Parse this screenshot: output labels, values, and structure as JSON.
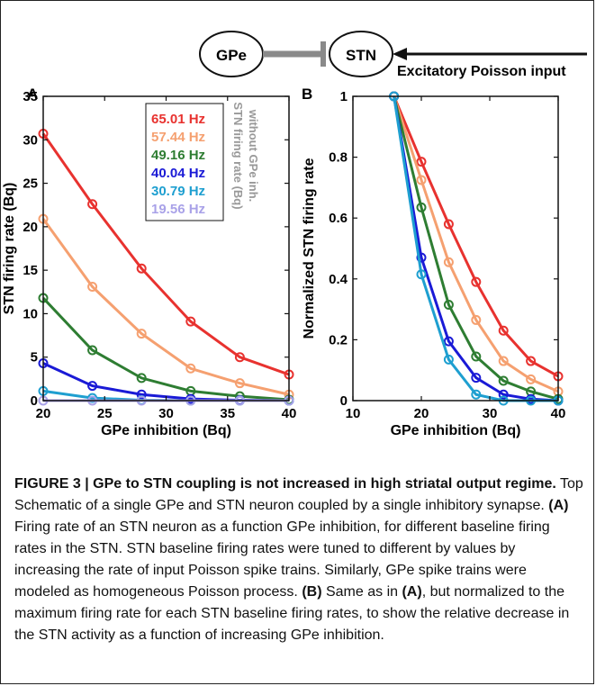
{
  "schematic": {
    "gpe": "GPe",
    "stn": "STN",
    "input_label": "Excitatory Poisson input"
  },
  "panels": {
    "a_letter": "A",
    "b_letter": "B",
    "legend_rotated": [
      "STN firing rate (Bq)",
      "without GPe inh."
    ]
  },
  "chart_data": [
    {
      "type": "line",
      "panel": "A",
      "xlabel": "GPe inhibition (Bq)",
      "ylabel": "STN firing rate (Bq)",
      "xlim": [
        20,
        40
      ],
      "ylim": [
        0,
        35
      ],
      "xticks": [
        "20",
        "25",
        "30",
        "35",
        "40"
      ],
      "yticks": [
        "0",
        "5",
        "10",
        "15",
        "20",
        "25",
        "30",
        "35"
      ],
      "x": [
        20,
        24,
        28,
        32,
        36,
        40
      ],
      "series": [
        {
          "name": "65.01 Hz",
          "color": "#e8322f",
          "values": [
            30.7,
            22.6,
            15.2,
            9.1,
            5.0,
            3.0
          ]
        },
        {
          "name": "57.44 Hz",
          "color": "#f5a070",
          "values": [
            20.9,
            13.1,
            7.7,
            3.7,
            2.0,
            0.7
          ]
        },
        {
          "name": "49.16 Hz",
          "color": "#2e7d32",
          "values": [
            11.8,
            5.8,
            2.6,
            1.1,
            0.5,
            0.1
          ]
        },
        {
          "name": "40.04 Hz",
          "color": "#1a1ad6",
          "values": [
            4.3,
            1.7,
            0.7,
            0.2,
            0.05,
            0.0
          ]
        },
        {
          "name": "30.79 Hz",
          "color": "#1e9fd0",
          "values": [
            1.1,
            0.3,
            0.05,
            0.0,
            0.0,
            0.0
          ]
        },
        {
          "name": "19.56 Hz",
          "color": "#a9a2e8",
          "values": [
            0.0,
            0.0,
            0.0,
            0.0,
            0.0,
            0.0
          ]
        }
      ],
      "legend": "top-right"
    },
    {
      "type": "line",
      "panel": "B",
      "xlabel": "GPe inhibition (Bq)",
      "ylabel": "Normalized STN firing rate",
      "xlim": [
        10,
        40
      ],
      "ylim": [
        0,
        1
      ],
      "xticks": [
        "10",
        "20",
        "30",
        "40"
      ],
      "yticks": [
        "0",
        "0.2",
        "0.4",
        "0.6",
        "0.8",
        "1"
      ],
      "x": [
        16,
        20,
        24,
        28,
        32,
        36,
        40
      ],
      "series": [
        {
          "name": "65.01 Hz",
          "color": "#e8322f",
          "values": [
            1.0,
            0.785,
            0.58,
            0.39,
            0.23,
            0.13,
            0.08
          ]
        },
        {
          "name": "57.44 Hz",
          "color": "#f5a070",
          "values": [
            1.0,
            0.725,
            0.455,
            0.265,
            0.13,
            0.07,
            0.03
          ]
        },
        {
          "name": "49.16 Hz",
          "color": "#2e7d32",
          "values": [
            1.0,
            0.635,
            0.315,
            0.145,
            0.065,
            0.03,
            0.005
          ]
        },
        {
          "name": "40.04 Hz",
          "color": "#1a1ad6",
          "values": [
            1.0,
            0.47,
            0.195,
            0.075,
            0.02,
            0.005,
            0.0
          ]
        },
        {
          "name": "30.79 Hz",
          "color": "#1e9fd0",
          "values": [
            1.0,
            0.415,
            0.135,
            0.02,
            0.0,
            0.0,
            0.0
          ]
        }
      ]
    }
  ],
  "caption": {
    "figure_label": "FIGURE 3 | GPe to STN coupling is not increased in high striatal output regime.",
    "seg1": " Top Schematic of a single GPe and STN neuron coupled by a single inhibitory synapse. ",
    "ref_a": "(A)",
    "seg2": " Firing rate of an STN neuron as a function GPe inhibition, for different baseline firing rates in the STN. STN baseline firing rates were tuned to different by values by increasing the rate of input Poisson spike trains. Similarly, GPe spike trains were modeled as homogeneous Poisson process. ",
    "ref_b": "(B)",
    "seg3": " Same as in ",
    "ref_a2": "(A)",
    "seg4": ", but normalized to the maximum firing rate for each STN baseline firing rates, to show the relative decrease in the STN activity as a function of increasing GPe inhibition."
  }
}
